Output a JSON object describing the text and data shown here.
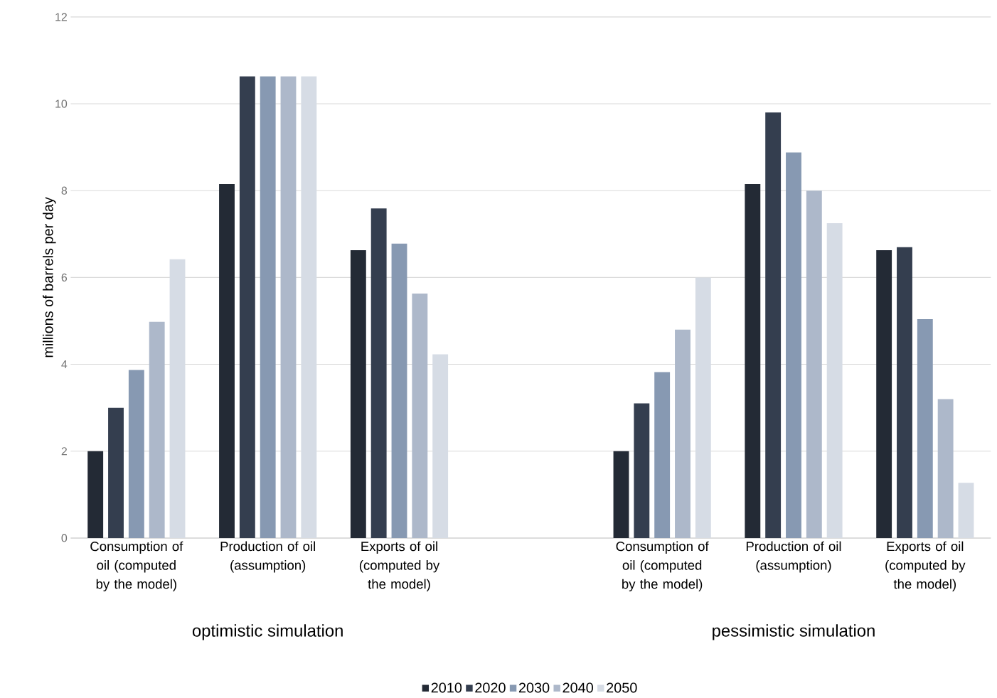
{
  "chart_data": {
    "type": "bar",
    "ylabel": "millions of barrels per day",
    "categories": [
      "Consumption of oil (computed by the model)",
      "Production of oil (assumption)",
      "Exports of oil (computed by the model)",
      null,
      "Consumption of oil (computed by the model)",
      "Production of oil (assumption)",
      "Exports of oil (computed by the model)"
    ],
    "series": [
      {
        "name": "2010",
        "color": "#232a35",
        "values": [
          2.0,
          8.15,
          6.63,
          null,
          2.0,
          8.15,
          6.63
        ]
      },
      {
        "name": "2020",
        "color": "#343e4f",
        "values": [
          3.0,
          10.63,
          7.59,
          null,
          3.1,
          9.8,
          6.7
        ]
      },
      {
        "name": "2030",
        "color": "#8799b2",
        "values": [
          3.87,
          10.63,
          6.78,
          null,
          3.82,
          8.88,
          5.04
        ]
      },
      {
        "name": "2040",
        "color": "#adb8ca",
        "values": [
          4.98,
          10.63,
          5.63,
          null,
          4.8,
          8.0,
          3.2
        ]
      },
      {
        "name": "2050",
        "color": "#d6dce5",
        "values": [
          6.42,
          10.63,
          4.23,
          null,
          6.0,
          7.25,
          1.27
        ]
      }
    ],
    "annotations": [
      "optimistic simulation",
      "pessimistic simulation"
    ],
    "ylim": [
      0,
      12
    ],
    "yticks": [
      0,
      2,
      4,
      6,
      8,
      10,
      12
    ],
    "grid": "y",
    "legend": "bottom"
  }
}
